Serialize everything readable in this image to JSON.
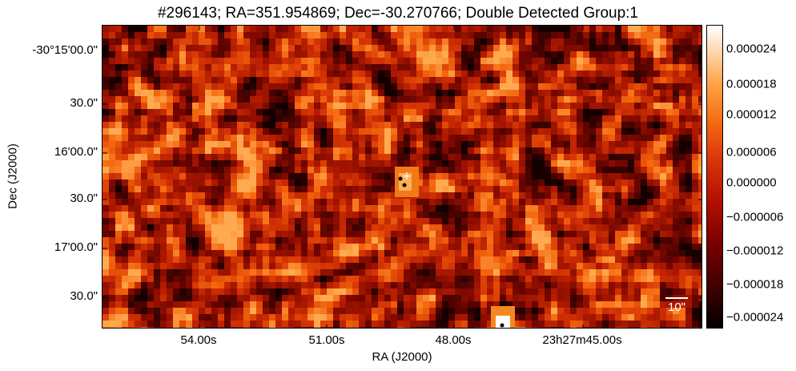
{
  "title": "#296143;  RA=351.954869;  Dec=-30.270766;  Double Detected Group:1",
  "axes": {
    "x_title": "RA (J2000)",
    "y_title": "Dec (J2000)",
    "x_ticks": [
      "54.00s",
      "51.00s",
      "48.00s",
      "23h27m45.00s"
    ],
    "y_ticks": [
      "-30°15'00.0\"",
      "30.0\"",
      "16'00.0\"",
      "30.0\"",
      "17'00.0\"",
      "30.0\""
    ]
  },
  "colorbar": {
    "ticks": [
      "0.000024",
      "0.000018",
      "0.000012",
      "0.000006",
      "0.000000",
      "−0.000006",
      "−0.000012",
      "−0.000018",
      "−0.000024"
    ],
    "colormap": "gist_heat"
  },
  "scalebar": {
    "label": "10\""
  },
  "markers": [
    {
      "symbol": "+",
      "color": "#ffffff"
    },
    {
      "symbol": "dot",
      "color": "#000000"
    },
    {
      "symbol": "dot",
      "color": "#000000"
    },
    {
      "symbol": "dot",
      "color": "#000000"
    }
  ]
}
